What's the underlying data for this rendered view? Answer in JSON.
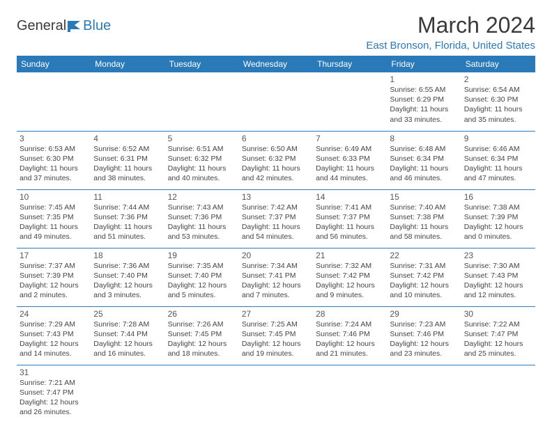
{
  "type": "calendar-document",
  "brand": {
    "name1": "General",
    "name2": "Blue",
    "logo_color": "#2a7ab9"
  },
  "title": "March 2024",
  "location": "East Bronson, Florida, United States",
  "colors": {
    "header_bg": "#2a7ab9",
    "header_text": "#ffffff",
    "row_border": "#2a7ab9",
    "body_text": "#444444",
    "title_text": "#3a3a3a"
  },
  "font": {
    "family": "Arial",
    "title_size": 32,
    "location_size": 15,
    "header_size": 12,
    "cell_size": 10.5,
    "daynum_size": 12
  },
  "day_headers": [
    "Sunday",
    "Monday",
    "Tuesday",
    "Wednesday",
    "Thursday",
    "Friday",
    "Saturday"
  ],
  "weeks": [
    [
      null,
      null,
      null,
      null,
      null,
      {
        "d": "1",
        "sr": "Sunrise: 6:55 AM",
        "ss": "Sunset: 6:29 PM",
        "dl1": "Daylight: 11 hours",
        "dl2": "and 33 minutes."
      },
      {
        "d": "2",
        "sr": "Sunrise: 6:54 AM",
        "ss": "Sunset: 6:30 PM",
        "dl1": "Daylight: 11 hours",
        "dl2": "and 35 minutes."
      }
    ],
    [
      {
        "d": "3",
        "sr": "Sunrise: 6:53 AM",
        "ss": "Sunset: 6:30 PM",
        "dl1": "Daylight: 11 hours",
        "dl2": "and 37 minutes."
      },
      {
        "d": "4",
        "sr": "Sunrise: 6:52 AM",
        "ss": "Sunset: 6:31 PM",
        "dl1": "Daylight: 11 hours",
        "dl2": "and 38 minutes."
      },
      {
        "d": "5",
        "sr": "Sunrise: 6:51 AM",
        "ss": "Sunset: 6:32 PM",
        "dl1": "Daylight: 11 hours",
        "dl2": "and 40 minutes."
      },
      {
        "d": "6",
        "sr": "Sunrise: 6:50 AM",
        "ss": "Sunset: 6:32 PM",
        "dl1": "Daylight: 11 hours",
        "dl2": "and 42 minutes."
      },
      {
        "d": "7",
        "sr": "Sunrise: 6:49 AM",
        "ss": "Sunset: 6:33 PM",
        "dl1": "Daylight: 11 hours",
        "dl2": "and 44 minutes."
      },
      {
        "d": "8",
        "sr": "Sunrise: 6:48 AM",
        "ss": "Sunset: 6:34 PM",
        "dl1": "Daylight: 11 hours",
        "dl2": "and 46 minutes."
      },
      {
        "d": "9",
        "sr": "Sunrise: 6:46 AM",
        "ss": "Sunset: 6:34 PM",
        "dl1": "Daylight: 11 hours",
        "dl2": "and 47 minutes."
      }
    ],
    [
      {
        "d": "10",
        "sr": "Sunrise: 7:45 AM",
        "ss": "Sunset: 7:35 PM",
        "dl1": "Daylight: 11 hours",
        "dl2": "and 49 minutes."
      },
      {
        "d": "11",
        "sr": "Sunrise: 7:44 AM",
        "ss": "Sunset: 7:36 PM",
        "dl1": "Daylight: 11 hours",
        "dl2": "and 51 minutes."
      },
      {
        "d": "12",
        "sr": "Sunrise: 7:43 AM",
        "ss": "Sunset: 7:36 PM",
        "dl1": "Daylight: 11 hours",
        "dl2": "and 53 minutes."
      },
      {
        "d": "13",
        "sr": "Sunrise: 7:42 AM",
        "ss": "Sunset: 7:37 PM",
        "dl1": "Daylight: 11 hours",
        "dl2": "and 54 minutes."
      },
      {
        "d": "14",
        "sr": "Sunrise: 7:41 AM",
        "ss": "Sunset: 7:37 PM",
        "dl1": "Daylight: 11 hours",
        "dl2": "and 56 minutes."
      },
      {
        "d": "15",
        "sr": "Sunrise: 7:40 AM",
        "ss": "Sunset: 7:38 PM",
        "dl1": "Daylight: 11 hours",
        "dl2": "and 58 minutes."
      },
      {
        "d": "16",
        "sr": "Sunrise: 7:38 AM",
        "ss": "Sunset: 7:39 PM",
        "dl1": "Daylight: 12 hours",
        "dl2": "and 0 minutes."
      }
    ],
    [
      {
        "d": "17",
        "sr": "Sunrise: 7:37 AM",
        "ss": "Sunset: 7:39 PM",
        "dl1": "Daylight: 12 hours",
        "dl2": "and 2 minutes."
      },
      {
        "d": "18",
        "sr": "Sunrise: 7:36 AM",
        "ss": "Sunset: 7:40 PM",
        "dl1": "Daylight: 12 hours",
        "dl2": "and 3 minutes."
      },
      {
        "d": "19",
        "sr": "Sunrise: 7:35 AM",
        "ss": "Sunset: 7:40 PM",
        "dl1": "Daylight: 12 hours",
        "dl2": "and 5 minutes."
      },
      {
        "d": "20",
        "sr": "Sunrise: 7:34 AM",
        "ss": "Sunset: 7:41 PM",
        "dl1": "Daylight: 12 hours",
        "dl2": "and 7 minutes."
      },
      {
        "d": "21",
        "sr": "Sunrise: 7:32 AM",
        "ss": "Sunset: 7:42 PM",
        "dl1": "Daylight: 12 hours",
        "dl2": "and 9 minutes."
      },
      {
        "d": "22",
        "sr": "Sunrise: 7:31 AM",
        "ss": "Sunset: 7:42 PM",
        "dl1": "Daylight: 12 hours",
        "dl2": "and 10 minutes."
      },
      {
        "d": "23",
        "sr": "Sunrise: 7:30 AM",
        "ss": "Sunset: 7:43 PM",
        "dl1": "Daylight: 12 hours",
        "dl2": "and 12 minutes."
      }
    ],
    [
      {
        "d": "24",
        "sr": "Sunrise: 7:29 AM",
        "ss": "Sunset: 7:43 PM",
        "dl1": "Daylight: 12 hours",
        "dl2": "and 14 minutes."
      },
      {
        "d": "25",
        "sr": "Sunrise: 7:28 AM",
        "ss": "Sunset: 7:44 PM",
        "dl1": "Daylight: 12 hours",
        "dl2": "and 16 minutes."
      },
      {
        "d": "26",
        "sr": "Sunrise: 7:26 AM",
        "ss": "Sunset: 7:45 PM",
        "dl1": "Daylight: 12 hours",
        "dl2": "and 18 minutes."
      },
      {
        "d": "27",
        "sr": "Sunrise: 7:25 AM",
        "ss": "Sunset: 7:45 PM",
        "dl1": "Daylight: 12 hours",
        "dl2": "and 19 minutes."
      },
      {
        "d": "28",
        "sr": "Sunrise: 7:24 AM",
        "ss": "Sunset: 7:46 PM",
        "dl1": "Daylight: 12 hours",
        "dl2": "and 21 minutes."
      },
      {
        "d": "29",
        "sr": "Sunrise: 7:23 AM",
        "ss": "Sunset: 7:46 PM",
        "dl1": "Daylight: 12 hours",
        "dl2": "and 23 minutes."
      },
      {
        "d": "30",
        "sr": "Sunrise: 7:22 AM",
        "ss": "Sunset: 7:47 PM",
        "dl1": "Daylight: 12 hours",
        "dl2": "and 25 minutes."
      }
    ],
    [
      {
        "d": "31",
        "sr": "Sunrise: 7:21 AM",
        "ss": "Sunset: 7:47 PM",
        "dl1": "Daylight: 12 hours",
        "dl2": "and 26 minutes."
      },
      null,
      null,
      null,
      null,
      null,
      null
    ]
  ]
}
